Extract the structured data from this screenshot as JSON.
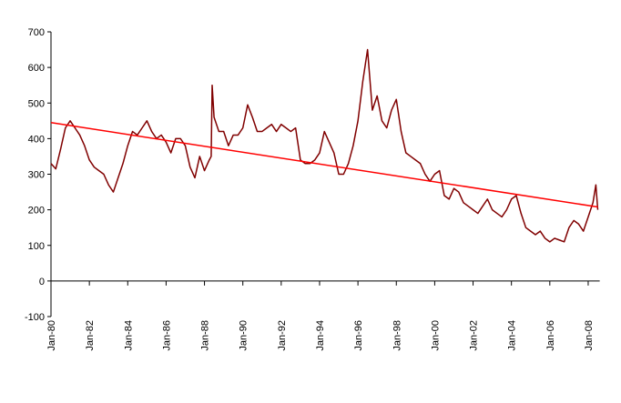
{
  "chart_data": {
    "type": "line",
    "xlim": [
      1980,
      2008.6
    ],
    "ylim": [
      -100,
      700
    ],
    "yticks": [
      -100,
      0,
      100,
      200,
      300,
      400,
      500,
      600,
      700
    ],
    "xticks": [
      {
        "value": 1980,
        "label": "Jan-80"
      },
      {
        "value": 1982,
        "label": "Jan-82"
      },
      {
        "value": 1984,
        "label": "Jan-84"
      },
      {
        "value": 1986,
        "label": "Jan-86"
      },
      {
        "value": 1988,
        "label": "Jan-88"
      },
      {
        "value": 1990,
        "label": "Jan-90"
      },
      {
        "value": 1992,
        "label": "Jan-92"
      },
      {
        "value": 1994,
        "label": "Jan-94"
      },
      {
        "value": 1996,
        "label": "Jan-96"
      },
      {
        "value": 1998,
        "label": "Jan-98"
      },
      {
        "value": 2000,
        "label": "Jan-00"
      },
      {
        "value": 2002,
        "label": "Jan-02"
      },
      {
        "value": 2004,
        "label": "Jan-04"
      },
      {
        "value": 2006,
        "label": "Jan-06"
      },
      {
        "value": 2008,
        "label": "Jan-08"
      }
    ],
    "grid": false,
    "series": [
      {
        "color": "#800000",
        "x": [
          1980,
          1980.25,
          1980.5,
          1980.75,
          1981,
          1981.25,
          1981.5,
          1981.75,
          1982,
          1982.25,
          1982.5,
          1982.75,
          1983,
          1983.25,
          1983.5,
          1983.75,
          1984,
          1984.25,
          1984.5,
          1984.75,
          1985,
          1985.25,
          1985.5,
          1985.75,
          1986,
          1986.25,
          1986.5,
          1986.75,
          1987,
          1987.25,
          1987.5,
          1987.75,
          1988,
          1988.25,
          1988.35,
          1988.4,
          1988.5,
          1988.75,
          1989,
          1989.25,
          1989.5,
          1989.75,
          1990,
          1990.25,
          1990.5,
          1990.75,
          1991,
          1991.25,
          1991.5,
          1991.75,
          1992,
          1992.25,
          1992.5,
          1992.75,
          1993,
          1993.25,
          1993.5,
          1993.75,
          1994,
          1994.25,
          1994.5,
          1994.75,
          1995,
          1995.25,
          1995.5,
          1995.75,
          1996,
          1996.25,
          1996.5,
          1996.75,
          1997,
          1997.25,
          1997.5,
          1997.75,
          1998,
          1998.25,
          1998.5,
          1998.75,
          1999,
          1999.25,
          1999.5,
          1999.75,
          2000,
          2000.25,
          2000.5,
          2000.75,
          2001,
          2001.25,
          2001.5,
          2001.75,
          2002,
          2002.25,
          2002.5,
          2002.75,
          2003,
          2003.25,
          2003.5,
          2003.75,
          2004,
          2004.25,
          2004.5,
          2004.75,
          2005,
          2005.25,
          2005.5,
          2005.75,
          2006,
          2006.25,
          2006.5,
          2006.75,
          2007,
          2007.25,
          2007.5,
          2007.75,
          2008,
          2008.25,
          2008.4,
          2008.5
        ],
        "values": [
          330,
          315,
          370,
          430,
          450,
          430,
          410,
          380,
          340,
          320,
          310,
          300,
          270,
          250,
          290,
          330,
          380,
          420,
          410,
          430,
          450,
          420,
          400,
          410,
          390,
          360,
          400,
          400,
          380,
          320,
          290,
          350,
          310,
          340,
          350,
          550,
          460,
          420,
          420,
          380,
          410,
          410,
          430,
          495,
          460,
          420,
          420,
          430,
          440,
          420,
          440,
          430,
          420,
          430,
          340,
          330,
          330,
          340,
          360,
          420,
          390,
          360,
          300,
          300,
          330,
          380,
          450,
          560,
          650,
          480,
          520,
          450,
          430,
          480,
          510,
          420,
          360,
          350,
          340,
          330,
          300,
          280,
          300,
          310,
          240,
          230,
          260,
          250,
          220,
          210,
          200,
          190,
          210,
          230,
          200,
          190,
          180,
          200,
          230,
          240,
          190,
          150,
          140,
          130,
          140,
          120,
          110,
          120,
          115,
          110,
          150,
          170,
          160,
          140,
          180,
          220,
          270,
          200
        ]
      },
      {
        "color": "#ff0000",
        "x": [
          1980,
          2008.5
        ],
        "values": [
          445,
          208
        ]
      }
    ]
  }
}
